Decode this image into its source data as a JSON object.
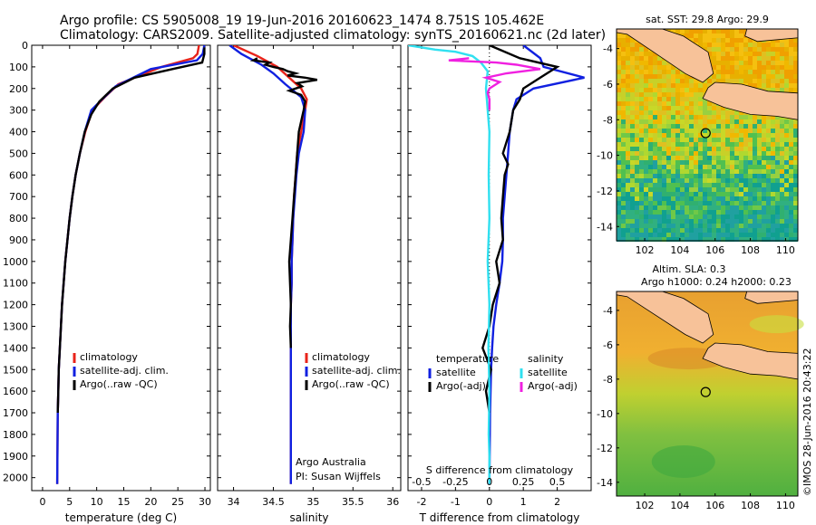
{
  "header": {
    "line1": "Argo profile: CS 5905008_19 19-Jun-2016 20160623_1474 8.751S 105.462E",
    "line2": "Climatology: CARS2009. Satellite-adjusted climatology: synTS_20160621.nc (2d later)"
  },
  "colors": {
    "climatology": "#e8231a",
    "satellite": "#1020e0",
    "argo": "#000000",
    "sat_salinity": "#30e0f0",
    "argo_salinity": "#f020e0",
    "land": "#f7c299"
  },
  "chart_data": [
    {
      "type": "line",
      "xlabel": "temperature (deg C)",
      "xlim": [
        -2,
        31
      ],
      "xticks": [
        0,
        5,
        10,
        15,
        20,
        25,
        30
      ],
      "ylim": [
        0,
        2060
      ],
      "yticks": [
        0,
        100,
        200,
        300,
        400,
        500,
        600,
        700,
        800,
        900,
        1000,
        1100,
        1200,
        1300,
        1400,
        1500,
        1600,
        1700,
        1800,
        1900,
        2000
      ],
      "legend": [
        "climatology",
        "satellite-adj. clim.",
        "Argo(..raw -QC)"
      ],
      "series": [
        {
          "name": "climatology",
          "color": "#e8231a",
          "x": [
            28.9,
            28.6,
            27.8,
            22,
            14,
            11.5,
            9.2,
            7.9,
            6.9,
            6.1,
            5.5,
            5,
            4.6,
            4.2,
            3.9,
            3.6,
            3.4,
            3.2,
            3.0,
            2.9,
            2.8,
            2.7
          ],
          "y": [
            0,
            40,
            60,
            100,
            180,
            240,
            300,
            400,
            500,
            600,
            700,
            800,
            900,
            1000,
            1100,
            1200,
            1300,
            1400,
            1500,
            1600,
            1700,
            2030
          ]
        },
        {
          "name": "satellite-adj. clim.",
          "color": "#1020e0",
          "x": [
            29.9,
            29.6,
            28.5,
            20,
            13.5,
            11,
            9,
            7.8,
            6.9,
            6.1,
            5.5,
            5,
            4.6,
            4.2,
            3.9,
            3.6,
            3.4,
            3.2,
            3.0,
            2.9,
            2.8,
            2.7
          ],
          "y": [
            0,
            40,
            70,
            110,
            190,
            250,
            300,
            400,
            500,
            600,
            700,
            800,
            900,
            1000,
            1100,
            1200,
            1300,
            1400,
            1500,
            1600,
            1700,
            2030
          ]
        },
        {
          "name": "Argo(..raw -QC)",
          "color": "#000000",
          "x": [
            29.9,
            29.9,
            29.7,
            29.5,
            24,
            17,
            13,
            10.5,
            9,
            7.8,
            6.9,
            6.1,
            5.5,
            5.0,
            4.6,
            4.2,
            3.9,
            3.6,
            3.4,
            3.2,
            3.0,
            2.9,
            2.8
          ],
          "y": [
            10,
            40,
            60,
            80,
            110,
            150,
            200,
            260,
            320,
            400,
            500,
            600,
            700,
            800,
            900,
            1000,
            1100,
            1200,
            1300,
            1400,
            1500,
            1600,
            1700
          ]
        }
      ]
    },
    {
      "type": "line",
      "xlabel": "salinity",
      "xlim": [
        33.8,
        36.1
      ],
      "xticks": [
        34,
        34.5,
        35,
        35.5,
        36
      ],
      "xticklabels": [
        "34",
        "34.5",
        "35",
        "35.5",
        "36"
      ],
      "ylim": [
        0,
        2060
      ],
      "legend": [
        "climatology",
        "satellite-adj. clim.",
        "Argo(..raw -QC)"
      ],
      "annotations": [
        "Argo Australia",
        "PI: Susan Wijffels"
      ],
      "series": [
        {
          "name": "climatology",
          "color": "#e8231a",
          "x": [
            34.0,
            34.3,
            34.55,
            34.7,
            34.85,
            34.92,
            34.9,
            34.85,
            34.8,
            34.78,
            34.76,
            34.75,
            34.74,
            34.73,
            34.73,
            34.72,
            34.72,
            34.72,
            34.72,
            34.72,
            34.72,
            34.72,
            34.72
          ],
          "y": [
            0,
            50,
            100,
            150,
            200,
            250,
            300,
            400,
            500,
            600,
            700,
            800,
            900,
            1000,
            1100,
            1200,
            1300,
            1400,
            1500,
            1600,
            1700,
            1900,
            2030
          ]
        },
        {
          "name": "satellite-adj. clim.",
          "color": "#1020e0",
          "x": [
            33.95,
            34.1,
            34.35,
            34.5,
            34.65,
            34.85,
            34.9,
            34.88,
            34.82,
            34.79,
            34.77,
            34.75,
            34.74,
            34.73,
            34.73,
            34.72,
            34.72,
            34.72,
            34.72,
            34.72,
            34.72,
            34.72,
            34.72
          ],
          "y": [
            0,
            40,
            90,
            130,
            180,
            240,
            300,
            400,
            500,
            600,
            700,
            800,
            900,
            1000,
            1100,
            1200,
            1300,
            1400,
            1500,
            1600,
            1700,
            1900,
            2030
          ]
        },
        {
          "name": "Argo(..raw -QC)",
          "color": "#000000",
          "x": [
            34.3,
            34.25,
            34.45,
            34.4,
            34.5,
            34.62,
            34.68,
            34.78,
            34.68,
            34.9,
            35.05,
            34.8,
            34.86,
            34.7,
            34.85,
            34.9,
            34.88,
            34.82,
            34.8,
            34.78,
            34.76,
            34.74,
            34.72,
            34.7,
            34.71,
            34.72,
            34.71,
            34.72
          ],
          "y": [
            60,
            70,
            80,
            90,
            100,
            110,
            120,
            130,
            140,
            150,
            160,
            175,
            190,
            210,
            230,
            260,
            300,
            400,
            500,
            600,
            700,
            800,
            900,
            1000,
            1100,
            1200,
            1300,
            1400
          ]
        }
      ]
    },
    {
      "type": "line",
      "xlabel": "T difference from climatology",
      "xlim": [
        -2.4,
        3.0
      ],
      "xticks": [
        -2,
        -1,
        0,
        1,
        2
      ],
      "xticklabels": [
        "-2",
        "-1",
        "0",
        "1",
        "2"
      ],
      "top_xlabel": "S difference from climatology",
      "top_xticks": [
        -0.5,
        -0.25,
        0,
        0.25,
        0.5
      ],
      "top_xticklabels": [
        "-0.5",
        "-0.25",
        "0",
        "0.25",
        "0.5"
      ],
      "ylim": [
        0,
        2060
      ],
      "legend": [
        {
          "group": "temperature",
          "items": [
            "satellite",
            "Argo(-adj)"
          ]
        },
        {
          "group": "salinity",
          "items": [
            "satellite",
            "Argo(-adj)"
          ]
        }
      ],
      "series": [
        {
          "name": "temperature satellite",
          "color": "#1020e0",
          "x": [
            1.0,
            1.5,
            1.6,
            2.8,
            1.3,
            0.8,
            0.7,
            0.6,
            0.55,
            0.5,
            0.45,
            0.4,
            0.4,
            0.38,
            0.3,
            0.2,
            0.12,
            0.08,
            0.05,
            0.02,
            0.0
          ],
          "y": [
            0,
            60,
            100,
            150,
            200,
            250,
            300,
            400,
            500,
            600,
            700,
            800,
            900,
            1000,
            1100,
            1200,
            1300,
            1400,
            1500,
            1700,
            2030
          ]
        },
        {
          "name": "temperature Argo(-adj)",
          "color": "#000000",
          "x": [
            0.0,
            0.9,
            2.0,
            1.5,
            1.0,
            0.9,
            0.7,
            0.6,
            0.4,
            0.55,
            0.45,
            0.4,
            0.35,
            0.4,
            0.2,
            0.3,
            0.1,
            0.0,
            -0.2,
            0.05,
            -0.1,
            0.0
          ],
          "y": [
            0,
            60,
            100,
            150,
            200,
            250,
            300,
            400,
            500,
            550,
            600,
            700,
            800,
            900,
            1000,
            1100,
            1200,
            1300,
            1400,
            1500,
            1600,
            1700
          ]
        },
        {
          "name": "salinity satellite",
          "color": "#30e0f0",
          "x": [
            -2.4,
            -1.6,
            -1.0,
            -0.5,
            -0.25,
            -0.05,
            -0.1,
            -0.05,
            0.0,
            -0.02,
            0.0,
            -0.05,
            0.0,
            -0.03,
            0.0,
            -0.02,
            0.0,
            0.0
          ],
          "y": [
            0,
            20,
            30,
            50,
            80,
            120,
            200,
            300,
            400,
            600,
            800,
            1000,
            1200,
            1400,
            1600,
            1800,
            1900,
            2030
          ]
        },
        {
          "name": "salinity Argo(-adj)",
          "color": "#f020e0",
          "x": [
            -0.6,
            -1.2,
            0.2,
            0.8,
            1.5,
            0.5,
            -0.1,
            0.3,
            0.0,
            -0.05,
            0.0,
            0.0
          ],
          "y": [
            60,
            70,
            80,
            90,
            110,
            130,
            150,
            170,
            200,
            220,
            250,
            300
          ]
        }
      ]
    }
  ],
  "maps": [
    {
      "title_line1": "sat. SST: 29.8 Argo: 29.9",
      "title_line2": "",
      "xticks": [
        "102",
        "104",
        "106",
        "108",
        "110"
      ],
      "yticks": [
        "-4",
        "-6",
        "-8",
        "-10",
        "-12",
        "-14"
      ],
      "type": "sst"
    },
    {
      "title_line1": "Altim. SLA: 0.3",
      "title_line2": "Argo h1000: 0.24 h2000: 0.23",
      "xticks": [
        "102",
        "104",
        "106",
        "108",
        "110"
      ],
      "yticks": [
        "-4",
        "-6",
        "-8",
        "-10",
        "-12",
        "-14"
      ],
      "type": "sla"
    }
  ],
  "credit": "©IMOS 28-Jun-2016 20:43:22"
}
